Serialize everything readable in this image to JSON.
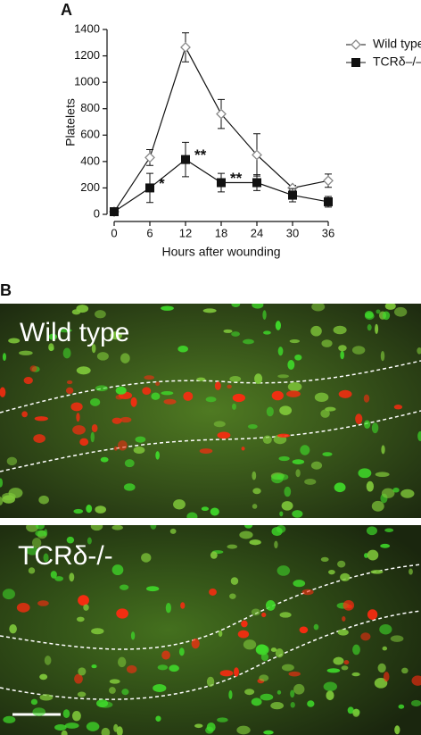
{
  "chart_data": {
    "type": "line",
    "panel_label": "A",
    "x_label": "Hours after wounding",
    "y_label": "Platelets",
    "x": [
      0,
      6,
      12,
      18,
      24,
      30,
      36
    ],
    "series": [
      {
        "name": "Wild type",
        "color": "#888888",
        "marker": "diamond",
        "values": [
          20,
          430,
          1265,
          760,
          450,
          200,
          255
        ],
        "errors": [
          10,
          60,
          110,
          110,
          160,
          20,
          50
        ]
      },
      {
        "name": "TCRδ–/–",
        "color": "#111111",
        "marker": "square",
        "values": [
          20,
          200,
          415,
          240,
          240,
          145,
          95
        ],
        "errors": [
          10,
          110,
          130,
          70,
          60,
          50,
          40
        ]
      }
    ],
    "annotations": [
      {
        "text": "*",
        "x": 6
      },
      {
        "text": "**",
        "x": 12
      },
      {
        "text": "**",
        "x": 18
      }
    ],
    "xlim": [
      0,
      36
    ],
    "xticks": [
      0,
      6,
      12,
      18,
      24,
      30,
      36
    ],
    "ylim": [
      0,
      1400
    ],
    "yticks": [
      0,
      200,
      400,
      600,
      800,
      1000,
      1200,
      1400
    ],
    "grid": false,
    "legend": "top-right"
  },
  "panel_b": {
    "label": "B",
    "images": [
      {
        "label": "Wild type"
      },
      {
        "label": "TCRδ-/-"
      }
    ]
  }
}
